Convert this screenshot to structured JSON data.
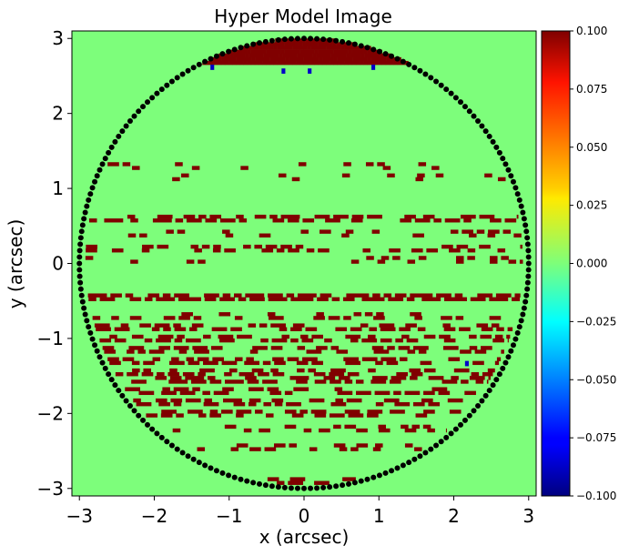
{
  "chart_data": {
    "type": "heatmap",
    "title": "Hyper Model Image",
    "xlabel": "x (arcsec)",
    "ylabel": "y (arcsec)",
    "xlim": [
      -3.1,
      3.1
    ],
    "ylim": [
      -3.1,
      3.1
    ],
    "xticks": [
      -3,
      -2,
      -1,
      0,
      1,
      2,
      3
    ],
    "yticks": [
      -3,
      -2,
      -1,
      0,
      1,
      2,
      3
    ],
    "xtick_labels": [
      "−3",
      "−2",
      "−1",
      "0",
      "1",
      "2",
      "3"
    ],
    "ytick_labels": [
      "−3",
      "−2",
      "−1",
      "0",
      "1",
      "2",
      "3"
    ],
    "background_value": 0.0,
    "grid": false,
    "colorbar": {
      "colormap": "jet",
      "vmin": -0.1,
      "vmax": 0.1,
      "ticks": [
        0.1,
        0.075,
        0.05,
        0.025,
        0.0,
        -0.025,
        -0.05,
        -0.075,
        -0.1
      ],
      "tick_labels": [
        "0.100",
        "0.075",
        "0.050",
        "0.025",
        "0.000",
        "−0.025",
        "−0.050",
        "−0.075",
        "−0.100"
      ]
    },
    "mask": {
      "shape": "circle",
      "center": [
        0,
        0
      ],
      "radius_arcsec": 3.0,
      "edge_marker_color": "#000000"
    },
    "high_value_regions": {
      "value": 0.1,
      "color": "#800000",
      "cap": {
        "y_from": 2.65,
        "y_to": 3.0
      },
      "bands": [
        {
          "y": 1.3,
          "density": 0.18
        },
        {
          "y": 1.15,
          "density": 0.1
        },
        {
          "y": 0.6,
          "density": 0.55
        },
        {
          "y": 0.4,
          "density": 0.25
        },
        {
          "y": 0.2,
          "density": 0.3
        },
        {
          "y": 0.05,
          "density": 0.15
        },
        {
          "y": -0.45,
          "density": 0.85
        },
        {
          "y": -0.7,
          "density": 0.35
        },
        {
          "y": -0.85,
          "density": 0.4
        },
        {
          "y": -1.0,
          "density": 0.45
        },
        {
          "y": -1.15,
          "density": 0.5
        },
        {
          "y": -1.3,
          "density": 0.45
        },
        {
          "y": -1.45,
          "density": 0.4
        },
        {
          "y": -1.55,
          "density": 0.55
        },
        {
          "y": -1.7,
          "density": 0.5
        },
        {
          "y": -1.85,
          "density": 0.55
        },
        {
          "y": -2.0,
          "density": 0.45
        },
        {
          "y": -2.2,
          "density": 0.3
        },
        {
          "y": -2.45,
          "density": 0.25
        },
        {
          "y": -2.9,
          "density": 0.5
        }
      ]
    },
    "negative_pixels": [
      {
        "x": -1.25,
        "y": 2.6
      },
      {
        "x": -0.3,
        "y": 2.55
      },
      {
        "x": 0.05,
        "y": 2.55
      },
      {
        "x": 0.9,
        "y": 2.6
      },
      {
        "x": 2.15,
        "y": -1.35
      }
    ]
  }
}
